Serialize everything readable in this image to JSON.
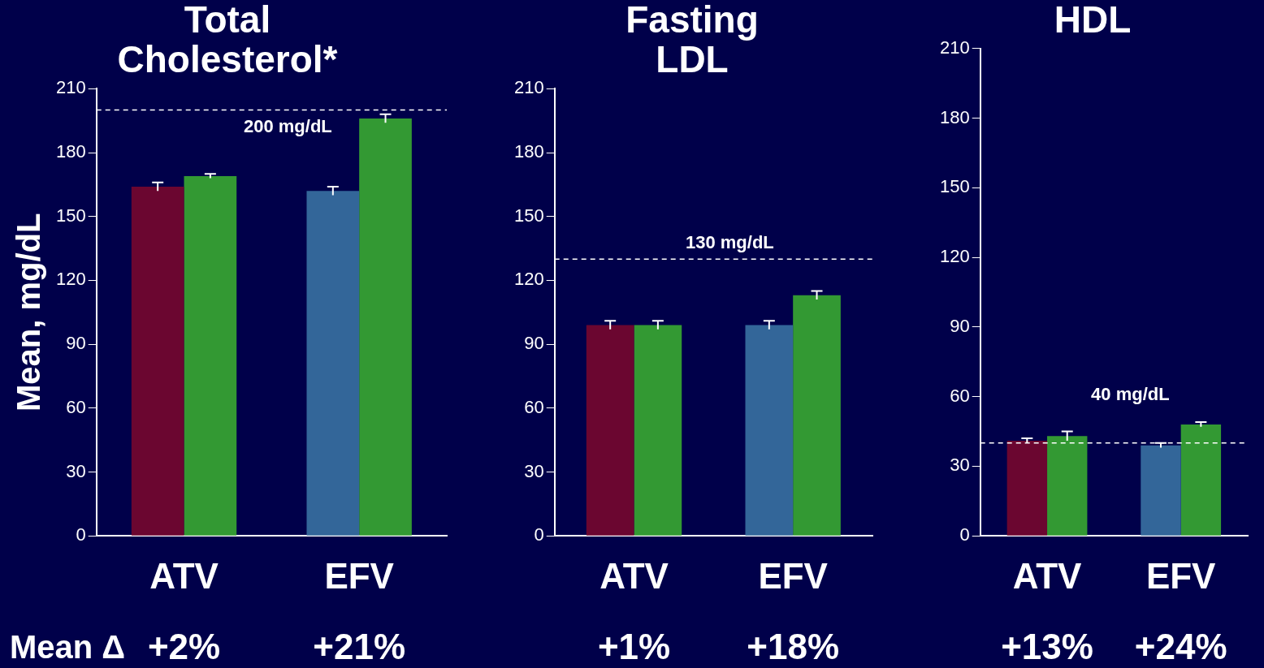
{
  "chart_data": [
    {
      "type": "bar",
      "title": "Total Cholesterol*",
      "ylabel": "Mean, mg/dL",
      "categories": [
        "ATV",
        "EFV"
      ],
      "series": [
        {
          "colors": [
            "#6b0630",
            "#336699"
          ],
          "values": [
            164,
            162
          ],
          "errors": [
            2,
            2
          ]
        },
        {
          "color": "#339933",
          "values": [
            169,
            196
          ],
          "errors": [
            1,
            2
          ]
        }
      ],
      "ylim": [
        0,
        210
      ],
      "yticks": [
        0,
        30,
        60,
        90,
        120,
        150,
        180,
        210
      ],
      "grid": false,
      "legend": false,
      "ref_lines": [
        {
          "axis": "y",
          "value": 200,
          "label": "200 mg/dL",
          "line_style": "dashed"
        }
      ],
      "annotations": [
        "Mean Δ",
        "+2%",
        "+21%"
      ]
    },
    {
      "type": "bar",
      "title": "Fasting LDL",
      "categories": [
        "ATV",
        "EFV"
      ],
      "series": [
        {
          "colors": [
            "#6b0630",
            "#336699"
          ],
          "values": [
            99,
            99
          ],
          "errors": [
            2,
            2
          ]
        },
        {
          "color": "#339933",
          "values": [
            99,
            113
          ],
          "errors": [
            2,
            2
          ]
        }
      ],
      "ylim": [
        0,
        210
      ],
      "yticks": [
        0,
        30,
        60,
        90,
        120,
        150,
        180,
        210
      ],
      "grid": false,
      "legend": false,
      "ref_lines": [
        {
          "axis": "y",
          "value": 130,
          "label": "130 mg/dL",
          "line_style": "dashed"
        }
      ],
      "annotations": [
        "+1%",
        "+18%"
      ]
    },
    {
      "type": "bar",
      "title": "HDL",
      "categories": [
        "ATV",
        "EFV"
      ],
      "series": [
        {
          "colors": [
            "#6b0630",
            "#336699"
          ],
          "values": [
            41,
            39
          ],
          "errors": [
            1,
            1
          ]
        },
        {
          "color": "#339933",
          "values": [
            43,
            48
          ],
          "errors": [
            2,
            1
          ]
        }
      ],
      "ylim": [
        0,
        210
      ],
      "yticks": [
        0,
        30,
        60,
        90,
        120,
        150,
        180,
        210
      ],
      "grid": false,
      "legend": false,
      "ref_lines": [
        {
          "axis": "y",
          "value": 40,
          "label": "40 mg/dL",
          "line_style": "dashed"
        }
      ],
      "annotations": [
        "+13%",
        "+24%"
      ]
    }
  ]
}
